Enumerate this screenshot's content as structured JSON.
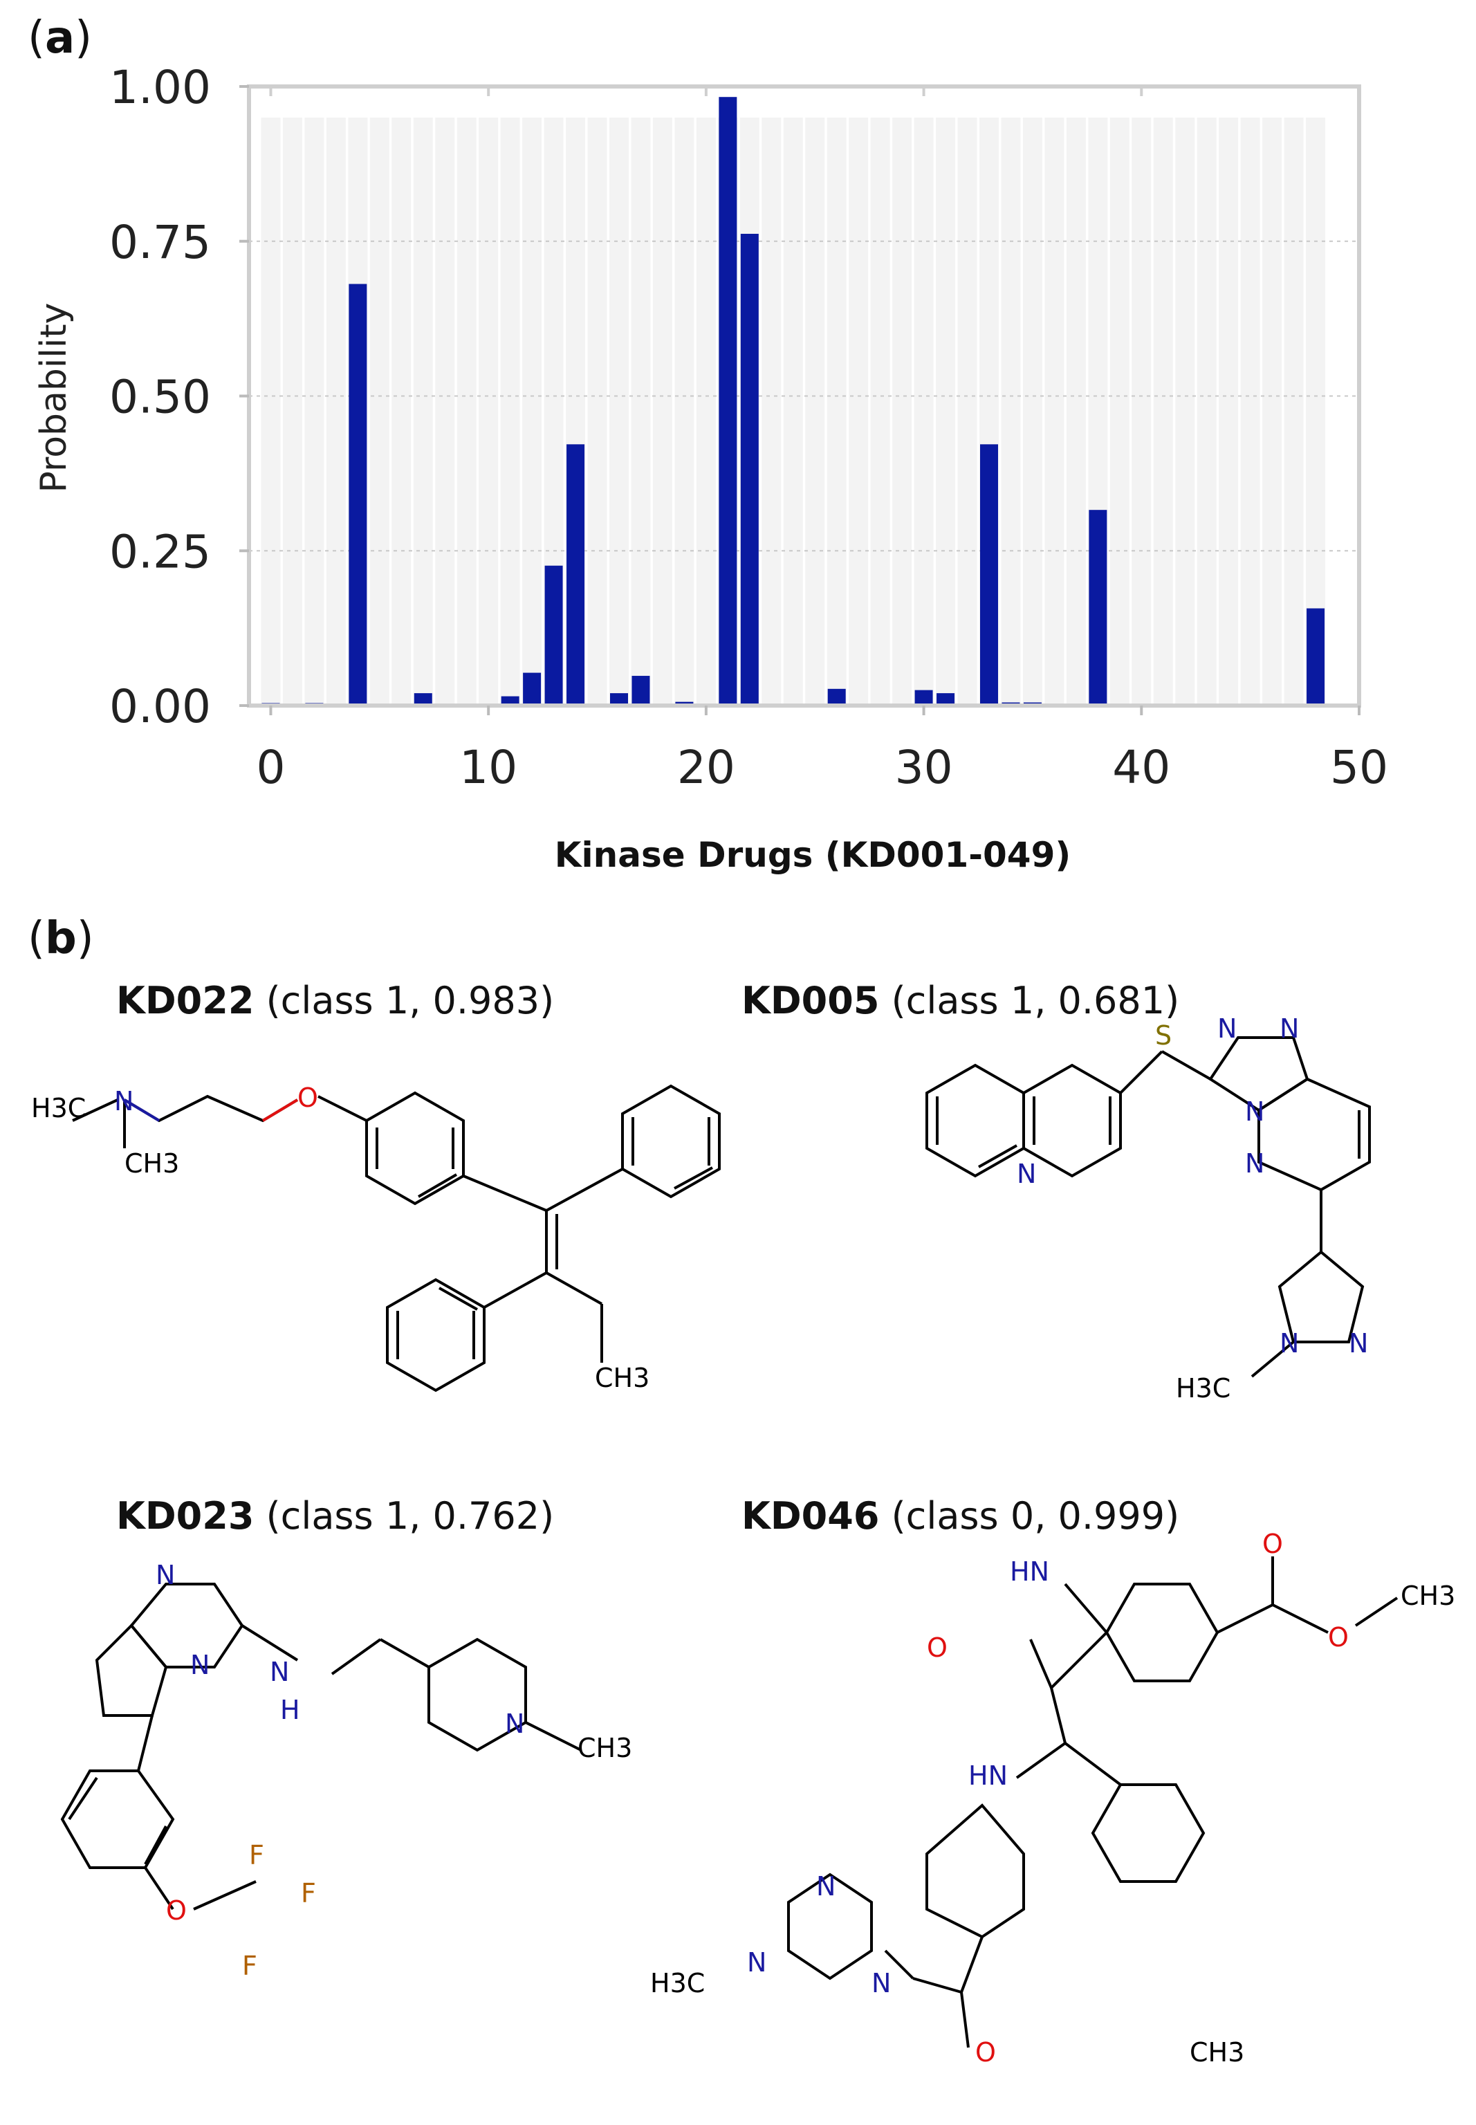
{
  "panel_a": {
    "label": "a"
  },
  "panel_b": {
    "label": "b"
  },
  "chart_data": {
    "type": "bar",
    "xlabel": "Kinase Drugs (KD001-049)",
    "ylabel": "Probability",
    "xlim": [
      -1,
      50
    ],
    "ylim": [
      0,
      1.0
    ],
    "xticks": [
      "0",
      "10",
      "20",
      "30",
      "40",
      "50"
    ],
    "yticks": [
      "0.00",
      "0.25",
      "0.50",
      "0.75",
      "1.00"
    ],
    "grid": true,
    "bar_color": "#0a1aa0",
    "x": [
      0,
      1,
      2,
      3,
      4,
      5,
      6,
      7,
      8,
      9,
      10,
      11,
      12,
      13,
      14,
      15,
      16,
      17,
      18,
      19,
      20,
      21,
      22,
      23,
      24,
      25,
      26,
      27,
      28,
      29,
      30,
      31,
      32,
      33,
      34,
      35,
      36,
      37,
      38,
      39,
      40,
      41,
      42,
      43,
      44,
      45,
      46,
      47,
      48
    ],
    "values": [
      0.004,
      0,
      0.004,
      0,
      0.681,
      0,
      0,
      0.02,
      0,
      0,
      0,
      0.015,
      0.053,
      0.226,
      0.422,
      0,
      0.02,
      0.048,
      0,
      0.006,
      0,
      0.983,
      0.762,
      0,
      0,
      0,
      0.027,
      0,
      0,
      0,
      0.025,
      0.02,
      0,
      0.422,
      0.005,
      0.005,
      0,
      0,
      0.316,
      0,
      0.003,
      0,
      0,
      0,
      0,
      0,
      0,
      0,
      0.157
    ]
  },
  "molecules": [
    {
      "id": "KD022",
      "info": "(class 1, 0.983)"
    },
    {
      "id": "KD005",
      "info": "(class 1, 0.681)"
    },
    {
      "id": "KD023",
      "info": "(class 1, 0.762)"
    },
    {
      "id": "KD046",
      "info": "(class 0, 0.999)"
    }
  ],
  "atoms": {
    "n": "N",
    "o": "O",
    "s": "S",
    "f": "F",
    "h3c": "H3C",
    "ch3": "CH3",
    "hn": "HN",
    "h": "H",
    "colors": {
      "n": "#1a1aa0",
      "o": "#e01010",
      "s": "#807000",
      "f": "#b06000"
    }
  }
}
